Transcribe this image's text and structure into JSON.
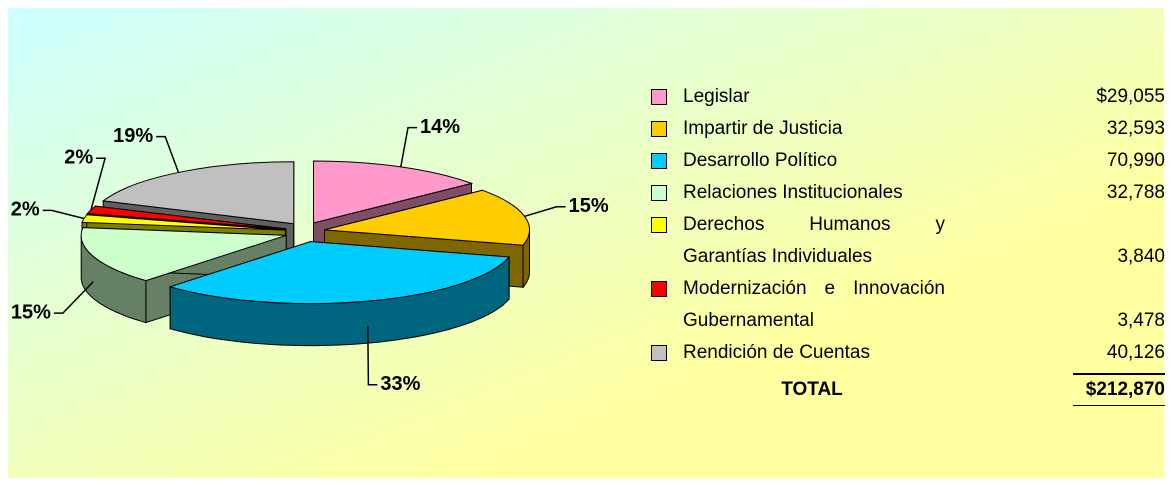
{
  "chart_data": {
    "type": "pie",
    "exploded": true,
    "three_d": true,
    "categories": [
      "Legislar",
      "Impartir de Justicia",
      "Desarrollo Político",
      "Relaciones Institucionales",
      "Derechos Humanos y Garantías Individuales",
      "Modernización e Innovación Gubernamental",
      "Rendición de Cuentas"
    ],
    "values": [
      14,
      15,
      33,
      15,
      2,
      2,
      19
    ],
    "value_labels": [
      "14%",
      "15%",
      "33%",
      "15%",
      "2%",
      "2%",
      "19%"
    ],
    "colors": [
      "#ff99cc",
      "#ffcc00",
      "#00ccff",
      "#ccffcc",
      "#ffff00",
      "#ff0000",
      "#c0c0c0"
    ],
    "legend_amounts": [
      "$29,055",
      "32,593",
      "70,990",
      "32,788",
      "3,840",
      "3,478",
      "40,126"
    ],
    "total_label": "TOTAL",
    "total_amount": "$212,870"
  }
}
